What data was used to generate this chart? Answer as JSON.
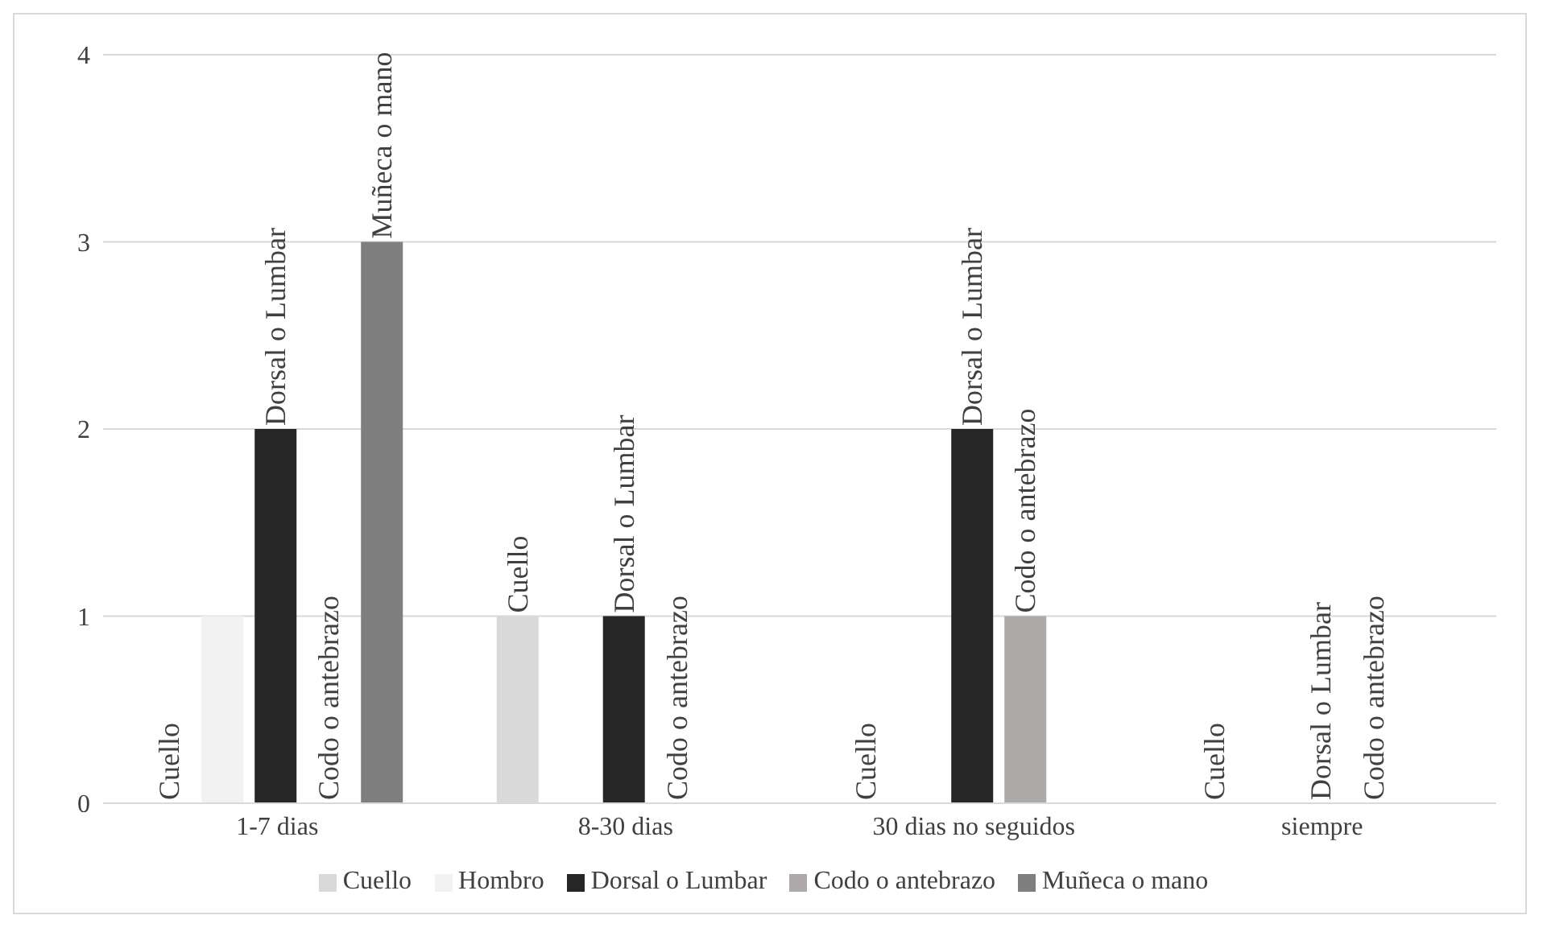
{
  "chart_data": {
    "type": "bar",
    "categories": [
      "1-7 dias",
      "8-30 dias",
      "30 dias no seguidos",
      "siempre"
    ],
    "series": [
      {
        "name": "Cuello",
        "color": "#d9d9d9",
        "values": [
          0,
          1,
          0,
          0
        ],
        "value_labels": [
          "Cuello",
          "Cuello",
          "Cuello",
          "Cuello"
        ]
      },
      {
        "name": "Hombro",
        "color": "#f2f2f2",
        "values": [
          1,
          null,
          null,
          null
        ],
        "value_labels": [
          null,
          null,
          null,
          null
        ]
      },
      {
        "name": "Dorsal o Lumbar",
        "color": "#262626",
        "values": [
          2,
          1,
          2,
          0
        ],
        "value_labels": [
          "Dorsal o Lumbar",
          "Dorsal o Lumbar",
          "Dorsal o Lumbar",
          "Dorsal o Lumbar"
        ]
      },
      {
        "name": "Codo o antebrazo",
        "color": "#aeaaaa",
        "values": [
          0,
          0,
          1,
          0
        ],
        "value_labels": [
          "Codo o antebrazo",
          "Codo o antebrazo",
          "Codo o antebrazo",
          "Codo o antebrazo"
        ]
      },
      {
        "name": "Muñeca o mano",
        "color": "#7f7f7f",
        "values": [
          3,
          null,
          null,
          null
        ],
        "value_labels": [
          "Muñeca o mano",
          null,
          null,
          null
        ]
      }
    ],
    "ylim": [
      0,
      4
    ],
    "yticks": [
      0,
      1,
      2,
      3,
      4
    ],
    "grid": "y",
    "legend": "bottom"
  }
}
